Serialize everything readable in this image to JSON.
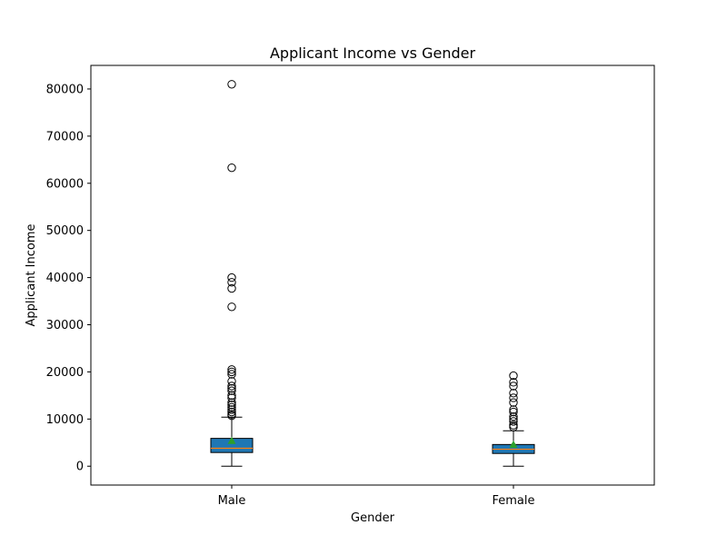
{
  "chart_data": {
    "type": "box",
    "title": "Applicant Income vs Gender",
    "xlabel": "Gender",
    "ylabel": "Applicant Income",
    "categories": [
      "Male",
      "Female"
    ],
    "ylim": [
      -4000,
      85000
    ],
    "yticks": [
      0,
      10000,
      20000,
      30000,
      40000,
      50000,
      60000,
      70000,
      80000
    ],
    "yticklabels": [
      "0",
      "10000",
      "20000",
      "30000",
      "40000",
      "50000",
      "60000",
      "70000",
      "80000"
    ],
    "grid": false,
    "colors": {
      "box_fill": "#1f77b4",
      "median": "#ff7f0e",
      "mean_marker": "#2ca02c",
      "axis": "#000000"
    },
    "boxes": [
      {
        "name": "Male",
        "whisker_low": 0,
        "q1": 2900,
        "median": 3800,
        "q3": 5900,
        "whisker_high": 10400,
        "mean": 5400,
        "outliers": [
          10700,
          11000,
          11500,
          12000,
          12500,
          13000,
          13500,
          14500,
          15000,
          16000,
          16500,
          17000,
          18000,
          19500,
          20000,
          20500,
          33800,
          37700,
          39000,
          40000,
          63300,
          81000
        ]
      },
      {
        "name": "Female",
        "whisker_low": 0,
        "q1": 2700,
        "median": 3600,
        "q3": 4600,
        "whisker_high": 7500,
        "mean": 4600,
        "outliers": [
          8300,
          8700,
          9500,
          10000,
          10500,
          11500,
          12000,
          13500,
          14500,
          15500,
          17000,
          17800,
          19200
        ]
      }
    ]
  }
}
